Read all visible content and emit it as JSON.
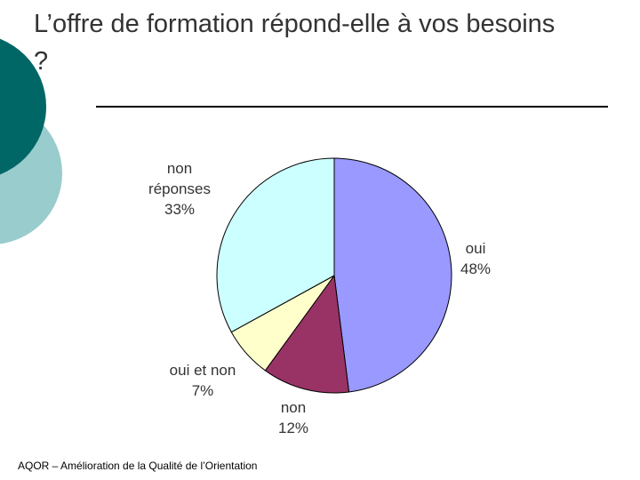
{
  "chart_data": {
    "type": "pie",
    "title": "L’offre de formation répond-elle à vos besoins ?",
    "categories": [
      "oui",
      "non",
      "oui et non",
      "non réponses"
    ],
    "values": [
      48,
      12,
      7,
      33
    ],
    "value_labels": [
      "48%",
      "12%",
      "7%",
      "33%"
    ],
    "colors": [
      "#9999ff",
      "#993366",
      "#ffffcc",
      "#ccffff"
    ],
    "footer": "AQOR – Amélioration de la Qualité de l’Orientation"
  }
}
